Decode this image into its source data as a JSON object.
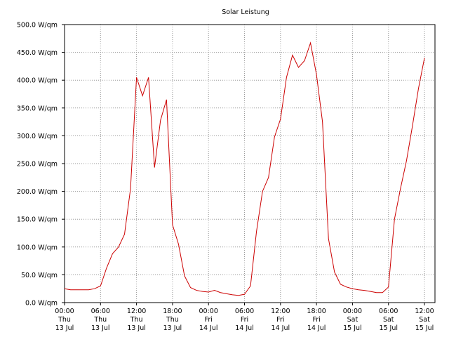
{
  "chart_data": {
    "type": "line",
    "title": "Solar Leistung",
    "x": [
      0,
      1,
      2,
      3,
      4,
      5,
      6,
      7,
      8,
      9,
      10,
      11,
      12,
      13,
      14,
      15,
      16,
      17,
      18,
      19,
      20,
      21,
      22,
      23,
      24,
      25,
      26,
      27,
      28,
      29,
      30,
      31,
      32,
      33,
      34,
      35,
      36,
      37,
      38,
      39,
      40,
      41,
      42,
      43,
      44,
      45,
      46,
      47,
      48,
      49,
      50,
      51,
      52,
      53,
      54,
      55,
      56,
      57,
      58,
      59,
      60
    ],
    "series": [
      {
        "name": "Solar Leistung",
        "color": "#cc0000",
        "values": [
          25,
          23,
          23,
          23,
          23,
          25,
          30,
          62,
          88,
          100,
          123,
          205,
          405,
          372,
          405,
          243,
          328,
          365,
          140,
          105,
          48,
          27,
          22,
          20,
          19,
          22,
          18,
          16,
          14,
          13,
          15,
          30,
          128,
          200,
          225,
          298,
          330,
          405,
          445,
          423,
          435,
          467,
          410,
          325,
          115,
          55,
          33,
          28,
          25,
          23,
          22,
          20,
          18,
          18,
          28,
          150,
          205,
          255,
          318,
          385,
          440
        ]
      }
    ],
    "xlim": [
      0,
      61.75
    ],
    "xticks": [
      {
        "value": 0,
        "label": "00:00\nThu\n13 Jul"
      },
      {
        "value": 6,
        "label": "06:00\nThu\n13 Jul"
      },
      {
        "value": 12,
        "label": "12:00\nThu\n13 Jul"
      },
      {
        "value": 18,
        "label": "18:00\nThu\n13 Jul"
      },
      {
        "value": 24,
        "label": "00:00\nFri\n14 Jul"
      },
      {
        "value": 30,
        "label": "06:00\nFri\n14 Jul"
      },
      {
        "value": 36,
        "label": "12:00\nFri\n14 Jul"
      },
      {
        "value": 42,
        "label": "18:00\nFri\n14 Jul"
      },
      {
        "value": 48,
        "label": "00:00\nSat\n15 Jul"
      },
      {
        "value": 54,
        "label": "06:00\nSat\n15 Jul"
      },
      {
        "value": 60,
        "label": "12:00\nSat\n15 Jul"
      }
    ],
    "ylim": [
      0,
      500
    ],
    "yticks": [
      {
        "value": 0,
        "label": "0.0 W/qm"
      },
      {
        "value": 50,
        "label": "50.0 W/qm"
      },
      {
        "value": 100,
        "label": "100.0 W/qm"
      },
      {
        "value": 150,
        "label": "150.0 W/qm"
      },
      {
        "value": 200,
        "label": "200.0 W/qm"
      },
      {
        "value": 250,
        "label": "250.0 W/qm"
      },
      {
        "value": 300,
        "label": "300.0 W/qm"
      },
      {
        "value": 350,
        "label": "350.0 W/qm"
      },
      {
        "value": 400,
        "label": "400.0 W/qm"
      },
      {
        "value": 450,
        "label": "450.0 W/qm"
      },
      {
        "value": 500,
        "label": "500.0 W/qm"
      }
    ],
    "grid": true
  }
}
